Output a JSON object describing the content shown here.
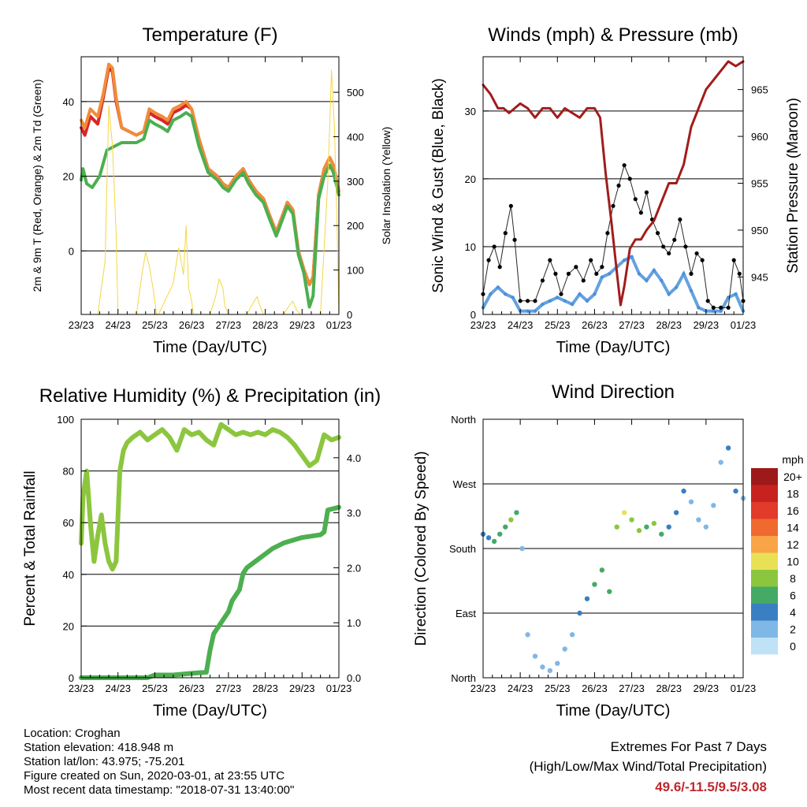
{
  "colors": {
    "temp_2m": "#d62728",
    "temp_9m": "#f08c3a",
    "dewpoint": "#4caf50",
    "solar": "#f5d742",
    "wind": "#4a90d9",
    "gust": "#000000",
    "pressure": "#a11c1c",
    "rh": "#8cc63f",
    "precip": "#4caf50",
    "extreme_value": "#c0272d"
  },
  "chart_data": [
    {
      "id": "temperature",
      "type": "line",
      "title": "Temperature (F)",
      "xlabel": "Time (Day/UTC)",
      "ylabel": "2m & 9m T (Red, Orange) & 2m Td (Green)",
      "y2label": "Solar Insolation (Yellow)",
      "x_ticks": [
        "23/23",
        "24/23",
        "25/23",
        "26/23",
        "27/23",
        "28/23",
        "29/23",
        "01/23"
      ],
      "xlim": [
        0,
        7
      ],
      "ylim": [
        -17,
        52
      ],
      "y_ticks": [
        0,
        20,
        40
      ],
      "y2lim": [
        0,
        580
      ],
      "y2_ticks": [
        0,
        100,
        200,
        300,
        400,
        500
      ],
      "grid_y": [
        0,
        20,
        40
      ],
      "series": [
        {
          "name": "2m T",
          "color": "#d62728",
          "x": [
            0,
            0.1,
            0.25,
            0.45,
            0.6,
            0.75,
            0.85,
            0.95,
            1.1,
            1.3,
            1.5,
            1.7,
            1.85,
            2,
            2.2,
            2.35,
            2.5,
            2.7,
            2.85,
            3,
            3.2,
            3.45,
            3.7,
            3.85,
            4,
            4.2,
            4.4,
            4.55,
            4.75,
            4.95,
            5.1,
            5.3,
            5.45,
            5.6,
            5.75,
            5.9,
            6.05,
            6.2,
            6.3,
            6.45,
            6.6,
            6.75,
            6.85,
            7
          ],
          "y": [
            33,
            31,
            36,
            34,
            41,
            49,
            48,
            40,
            33,
            32,
            31,
            32,
            37,
            36,
            35,
            34,
            37,
            38,
            39,
            38,
            30,
            22,
            20,
            18,
            17,
            20,
            22,
            19,
            16,
            14,
            10,
            5,
            9,
            13,
            11,
            0,
            -5,
            -9,
            -7,
            15,
            22,
            25,
            23,
            16
          ]
        },
        {
          "name": "9m T",
          "color": "#f08c3a",
          "x": [
            0,
            0.1,
            0.25,
            0.45,
            0.6,
            0.75,
            0.85,
            0.95,
            1.1,
            1.3,
            1.5,
            1.7,
            1.85,
            2,
            2.2,
            2.35,
            2.5,
            2.7,
            2.85,
            3,
            3.2,
            3.45,
            3.7,
            3.85,
            4,
            4.2,
            4.4,
            4.55,
            4.75,
            4.95,
            5.1,
            5.3,
            5.45,
            5.6,
            5.75,
            5.9,
            6.05,
            6.2,
            6.3,
            6.45,
            6.6,
            6.75,
            6.85,
            7
          ],
          "y": [
            35,
            33,
            38,
            36,
            42,
            50,
            49,
            41,
            33,
            32,
            31,
            32,
            38,
            37,
            36,
            35,
            38,
            39,
            40,
            38,
            30,
            22,
            20,
            18,
            17,
            20,
            22,
            19,
            16,
            14,
            10,
            5,
            9,
            13,
            11,
            0,
            -5,
            -9,
            -7,
            15,
            22,
            25,
            23,
            16
          ]
        },
        {
          "name": "2m Td",
          "color": "#4caf50",
          "x": [
            0,
            0.05,
            0.15,
            0.3,
            0.5,
            0.7,
            0.9,
            1.1,
            1.3,
            1.5,
            1.7,
            1.85,
            2,
            2.2,
            2.35,
            2.5,
            2.7,
            2.85,
            3,
            3.2,
            3.45,
            3.7,
            3.85,
            4,
            4.2,
            4.4,
            4.55,
            4.75,
            4.95,
            5.1,
            5.3,
            5.45,
            5.6,
            5.75,
            5.9,
            6.05,
            6.2,
            6.3,
            6.45,
            6.6,
            6.75,
            6.85,
            7
          ],
          "y": [
            19,
            22,
            18,
            17,
            20,
            27,
            28,
            29,
            29,
            29,
            30,
            35,
            34,
            33,
            32,
            35,
            36,
            37,
            36,
            28,
            21,
            19,
            17,
            16,
            19,
            21,
            18,
            15,
            13,
            9,
            4,
            8,
            12,
            10,
            -1,
            -6,
            -15,
            -12,
            14,
            20,
            23,
            21,
            15
          ]
        },
        {
          "name": "Solar Insolation",
          "color": "#f5d742",
          "axis": "y2",
          "x": [
            0,
            0.45,
            0.65,
            0.75,
            0.85,
            0.95,
            1.0,
            1.5,
            1.65,
            1.75,
            1.85,
            1.95,
            2.05,
            2.1,
            2.5,
            2.65,
            2.78,
            2.85,
            2.92,
            3.0,
            3.05,
            3.5,
            3.65,
            3.75,
            3.85,
            3.9,
            4.0,
            4.5,
            4.7,
            4.78,
            4.85,
            4.95,
            5.5,
            5.65,
            5.75,
            5.85,
            5.95,
            6.0,
            6.5,
            6.7,
            6.8,
            6.88,
            6.95,
            7.0
          ],
          "y": [
            0,
            0,
            120,
            470,
            380,
            180,
            0,
            0,
            90,
            140,
            110,
            60,
            0,
            0,
            70,
            150,
            90,
            200,
            60,
            30,
            0,
            0,
            40,
            80,
            60,
            20,
            0,
            0,
            30,
            40,
            20,
            0,
            0,
            20,
            30,
            10,
            0,
            0,
            0,
            300,
            550,
            420,
            200,
            0
          ]
        }
      ]
    },
    {
      "id": "winds",
      "type": "scatter",
      "title": "Winds (mph) & Pressure (mb)",
      "xlabel": "Time (Day/UTC)",
      "ylabel": "Sonic Wind & Gust (Blue, Black)",
      "y2label": "Station Pressure (Maroon)",
      "x_ticks": [
        "23/23",
        "24/23",
        "25/23",
        "26/23",
        "27/23",
        "28/23",
        "29/23",
        "01/23"
      ],
      "xlim": [
        0,
        7
      ],
      "ylim": [
        0,
        38
      ],
      "y_ticks": [
        0,
        10,
        20,
        30
      ],
      "y2lim": [
        941,
        968.5
      ],
      "y2_ticks": [
        945,
        950,
        955,
        960,
        965
      ],
      "grid_y": [
        10,
        20,
        30
      ],
      "series": [
        {
          "name": "Sonic Wind",
          "color": "#4a90d9",
          "x": [
            0,
            0.2,
            0.4,
            0.6,
            0.8,
            1.0,
            1.2,
            1.4,
            1.6,
            1.8,
            2.0,
            2.2,
            2.4,
            2.6,
            2.8,
            3.0,
            3.2,
            3.4,
            3.6,
            3.8,
            4.0,
            4.2,
            4.4,
            4.6,
            4.8,
            5.0,
            5.2,
            5.4,
            5.6,
            5.8,
            6.0,
            6.2,
            6.4,
            6.6,
            6.8,
            7.0
          ],
          "y": [
            1,
            3,
            4,
            3,
            2.5,
            0.5,
            0.5,
            0.5,
            1.5,
            2,
            2.5,
            2,
            1.5,
            3,
            2,
            3,
            5.5,
            6,
            7,
            8,
            8.5,
            6,
            5,
            6.5,
            5,
            3,
            4,
            6,
            3.5,
            1,
            0.5,
            0.5,
            0.5,
            2.5,
            3,
            0.5
          ]
        },
        {
          "name": "Gust",
          "color": "#000000",
          "x": [
            0,
            0.15,
            0.3,
            0.45,
            0.6,
            0.75,
            0.85,
            1.0,
            1.2,
            1.4,
            1.6,
            1.8,
            1.95,
            2.1,
            2.3,
            2.5,
            2.7,
            2.9,
            3.05,
            3.2,
            3.35,
            3.5,
            3.65,
            3.8,
            3.95,
            4.1,
            4.25,
            4.4,
            4.55,
            4.7,
            4.85,
            5.0,
            5.15,
            5.3,
            5.45,
            5.6,
            5.75,
            5.9,
            6.05,
            6.2,
            6.4,
            6.6,
            6.75,
            6.9,
            7.0
          ],
          "y": [
            3,
            8,
            10,
            7,
            12,
            16,
            11,
            2,
            2,
            2,
            5,
            8,
            6,
            3,
            6,
            7,
            5,
            8,
            6,
            7,
            12,
            16,
            19,
            22,
            20,
            17,
            15,
            18,
            14,
            12,
            10,
            9,
            11,
            14,
            10,
            6,
            9,
            8,
            2,
            1,
            1,
            1,
            8,
            6,
            2
          ]
        },
        {
          "name": "Station Pressure",
          "color": "#a11c1c",
          "axis": "y2",
          "x": [
            0,
            0.2,
            0.4,
            0.55,
            0.7,
            0.85,
            1.0,
            1.2,
            1.4,
            1.6,
            1.8,
            2.0,
            2.2,
            2.4,
            2.6,
            2.8,
            3.0,
            3.15,
            3.3,
            3.45,
            3.6,
            3.7,
            3.8,
            3.95,
            4.1,
            4.25,
            4.4,
            4.6,
            4.8,
            5.0,
            5.2,
            5.4,
            5.6,
            5.8,
            6.0,
            6.2,
            6.4,
            6.6,
            6.8,
            7.0
          ],
          "y": [
            965.5,
            964.5,
            963,
            963,
            962.5,
            963,
            963.5,
            963,
            962,
            963,
            963,
            962,
            963,
            962.5,
            962,
            963,
            963,
            962,
            956,
            951,
            945.5,
            942,
            944,
            948,
            949,
            949,
            950,
            951,
            953,
            955,
            955,
            957,
            961,
            963,
            965,
            966,
            967,
            968,
            967.5,
            968
          ]
        }
      ]
    },
    {
      "id": "humidity",
      "type": "line",
      "title": "Relative Humidity (%) & Precipitation (in)",
      "xlabel": "Time (Day/UTC)",
      "ylabel": "Percent & Total Rainfall",
      "x_ticks": [
        "23/23",
        "24/23",
        "25/23",
        "26/23",
        "27/23",
        "28/23",
        "29/23",
        "01/23"
      ],
      "xlim": [
        0,
        7
      ],
      "ylim": [
        0,
        100
      ],
      "y_ticks": [
        0,
        20,
        40,
        60,
        80,
        100
      ],
      "y2lim": [
        0,
        4.7
      ],
      "y2_ticks": [
        "0.0",
        "1.0",
        "2.0",
        "3.0",
        "4.0"
      ],
      "grid_y": [
        20,
        40,
        60,
        80
      ],
      "series": [
        {
          "name": "Relative Humidity",
          "color": "#8cc63f",
          "x": [
            0,
            0.05,
            0.15,
            0.25,
            0.35,
            0.45,
            0.55,
            0.65,
            0.75,
            0.85,
            0.95,
            1.05,
            1.15,
            1.25,
            1.4,
            1.6,
            1.8,
            2.0,
            2.2,
            2.4,
            2.6,
            2.8,
            3.0,
            3.2,
            3.4,
            3.6,
            3.8,
            4.0,
            4.2,
            4.4,
            4.6,
            4.8,
            5.0,
            5.2,
            5.4,
            5.6,
            5.8,
            6.0,
            6.2,
            6.4,
            6.6,
            6.8,
            7.0
          ],
          "y": [
            52,
            70,
            80,
            60,
            45,
            55,
            63,
            52,
            45,
            42,
            45,
            80,
            88,
            91,
            93,
            95,
            92,
            94,
            96,
            93,
            88,
            96,
            94,
            95,
            92,
            90,
            98,
            96,
            94,
            95,
            94,
            95,
            94,
            96,
            95,
            93,
            90,
            86,
            82,
            84,
            94,
            92,
            93
          ]
        },
        {
          "name": "Total Precipitation",
          "color": "#4caf50",
          "axis": "y2",
          "x": [
            0,
            0.5,
            1.0,
            1.5,
            1.8,
            2.0,
            2.5,
            3.0,
            3.4,
            3.5,
            3.6,
            3.8,
            4.0,
            4.1,
            4.3,
            4.4,
            4.5,
            4.8,
            5.0,
            5.2,
            5.5,
            6.0,
            6.5,
            6.6,
            6.7,
            7.0
          ],
          "y": [
            0,
            0,
            0,
            0,
            0,
            0.05,
            0.05,
            0.08,
            0.1,
            0.5,
            0.8,
            1.0,
            1.2,
            1.4,
            1.6,
            1.9,
            2.0,
            2.15,
            2.25,
            2.35,
            2.45,
            2.55,
            2.6,
            2.65,
            3.05,
            3.1
          ]
        }
      ]
    },
    {
      "id": "wind_direction",
      "type": "scatter",
      "title": "Wind Direction",
      "xlabel": "Time (Day/UTC)",
      "ylabel": "Direction (Colored By Speed)",
      "x_ticks": [
        "23/23",
        "24/23",
        "25/23",
        "26/23",
        "27/23",
        "28/23",
        "29/23",
        "01/23"
      ],
      "xlim": [
        0,
        7
      ],
      "y_ticks": [
        "North",
        "East",
        "South",
        "West",
        "North"
      ],
      "ylim": [
        0,
        360
      ],
      "grid_y": [
        90,
        180,
        270
      ],
      "legend": {
        "title": "mph",
        "labels": [
          "20+",
          "18",
          "16",
          "14",
          "12",
          "10",
          "8",
          "6",
          "4",
          "2",
          "0"
        ],
        "colors": [
          "#9e1a1a",
          "#c8221f",
          "#e23a2b",
          "#f06a30",
          "#f8a447",
          "#e8e055",
          "#8cc63f",
          "#44aa66",
          "#3a7fc2",
          "#7fb7e6",
          "#bfe2f7"
        ]
      },
      "series": [
        {
          "name": "Wind Direction",
          "x": [
            0,
            0.15,
            0.3,
            0.45,
            0.6,
            0.75,
            0.9,
            1.05,
            1.2,
            1.4,
            1.6,
            1.8,
            2.0,
            2.2,
            2.4,
            2.6,
            2.8,
            3.0,
            3.2,
            3.4,
            3.6,
            3.8,
            4.0,
            4.2,
            4.4,
            4.6,
            4.8,
            5.0,
            5.2,
            5.4,
            5.6,
            5.8,
            6.0,
            6.2,
            6.4,
            6.6,
            6.8,
            7.0
          ],
          "y": [
            200,
            195,
            190,
            200,
            210,
            220,
            230,
            180,
            60,
            30,
            15,
            10,
            20,
            40,
            60,
            90,
            110,
            130,
            150,
            120,
            210,
            230,
            220,
            205,
            210,
            215,
            200,
            210,
            230,
            260,
            245,
            220,
            210,
            240,
            300,
            320,
            260,
            250
          ],
          "speed": [
            4,
            4,
            5,
            5,
            6,
            7,
            5,
            1,
            1,
            1,
            1,
            1,
            1,
            1,
            2,
            3,
            4,
            5,
            6,
            6,
            8,
            9,
            8,
            7,
            6,
            8,
            5,
            3,
            4,
            3,
            2,
            2,
            1,
            1,
            1,
            3,
            4,
            2
          ]
        }
      ]
    }
  ],
  "info": {
    "location": "Location: Croghan",
    "elevation": "Station elevation: 418.948 m",
    "latlon": "Station lat/lon: 43.975; -75.201",
    "created": "Figure created on Sun, 2020-03-01, at 23:55 UTC",
    "recent": "Most recent data timestamp: \"2018-07-31 13:40:00\""
  },
  "extremes": {
    "title": "Extremes For Past 7 Days",
    "subtitle": "(High/Low/Max Wind/Total Precipitation)",
    "value": "49.6/-11.5/9.5/3.08"
  }
}
